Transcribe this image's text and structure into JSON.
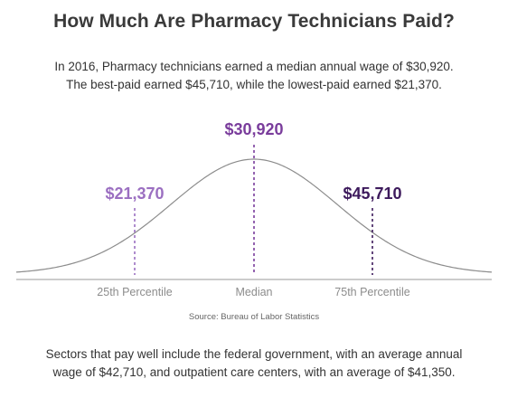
{
  "header": {
    "title": "How Much Are Pharmacy Technicians Paid?",
    "subtitle_lines": [
      "In 2016, Pharmacy technicians earned a median annual wage of $30,920.",
      "The best-paid earned $45,710, while the lowest-paid earned $21,370."
    ]
  },
  "chart_data": {
    "type": "area",
    "title": "",
    "distribution": "normal",
    "markers": [
      {
        "label": "25th Percentile",
        "value": 21370,
        "value_label": "$21,370",
        "color": "#9b6fc1"
      },
      {
        "label": "Median",
        "value": 30920,
        "value_label": "$30,920",
        "color": "#7a3d9c"
      },
      {
        "label": "75th Percentile",
        "value": 45710,
        "value_label": "$45,710",
        "color": "#3d1a5c"
      }
    ],
    "source": "Source: Bureau of Labor Statistics",
    "curve_color": "#8c8c8c",
    "axis_color": "#9a9a9a",
    "tick_label_color": "#8c8c8c"
  },
  "footer": {
    "lines": [
      "Sectors that pay well include the federal government, with an average annual",
      "wage of $42,710, and outpatient care centers, with an average of $41,350."
    ]
  }
}
